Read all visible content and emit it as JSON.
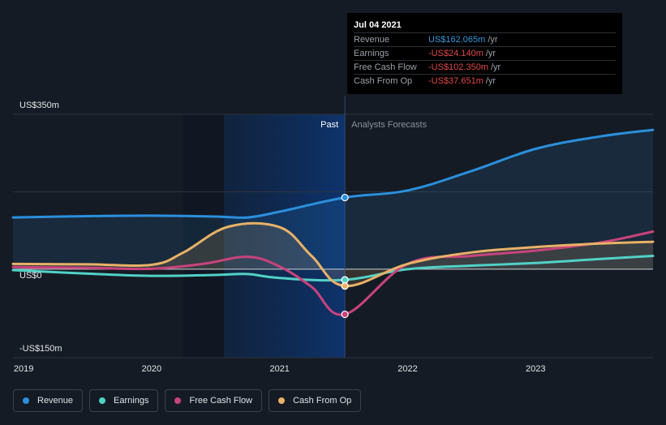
{
  "chart_data": {
    "type": "line",
    "x_range": [
      2018.917,
      2023.917
    ],
    "y_range": [
      -200,
      350
    ],
    "x_ticks": [
      {
        "value": 2019,
        "label": "2019"
      },
      {
        "value": 2020,
        "label": "2020"
      },
      {
        "value": 2021,
        "label": "2021"
      },
      {
        "value": 2022,
        "label": "2022"
      },
      {
        "value": 2023,
        "label": "2023"
      }
    ],
    "y_ticks": [
      {
        "value": 350,
        "label": "US$350m"
      },
      {
        "value": 0,
        "label": "US$0"
      },
      {
        "value": -150,
        "label": "-US$150m"
      }
    ],
    "divider_x": 2021.51,
    "past_label": "Past",
    "forecast_label": "Analysts Forecasts",
    "series": [
      {
        "name": "Revenue",
        "color": "#2b8fdc",
        "fill": true,
        "x": [
          2018.917,
          2019.5,
          2020.0,
          2020.5,
          2020.75,
          2021.0,
          2021.51,
          2022.0,
          2022.5,
          2023.0,
          2023.5,
          2023.917
        ],
        "y": [
          117,
          120,
          121,
          119,
          117,
          130,
          162,
          178,
          222,
          272,
          300,
          315
        ]
      },
      {
        "name": "Earnings",
        "color": "#52d1c6",
        "fill": false,
        "x": [
          2018.917,
          2019.5,
          2020.0,
          2020.5,
          2020.75,
          2021.0,
          2021.51,
          2022.0,
          2022.5,
          2023.0,
          2023.5,
          2023.917
        ],
        "y": [
          -2,
          -10,
          -15,
          -13,
          -11,
          -20,
          -24,
          0,
          8,
          14,
          23,
          30
        ]
      },
      {
        "name": "Free Cash Flow",
        "color": "#c8437c",
        "fill": false,
        "x": [
          2018.917,
          2019.5,
          2020.0,
          2020.4,
          2020.75,
          2021.0,
          2021.25,
          2021.51,
          2022.0,
          2022.5,
          2023.0,
          2023.5,
          2023.917
        ],
        "y": [
          5,
          3,
          1,
          12,
          28,
          6,
          -40,
          -102,
          12,
          30,
          42,
          60,
          85
        ]
      },
      {
        "name": "Cash From Op",
        "color": "#e9b167",
        "fill": true,
        "x": [
          2018.917,
          2019.5,
          2020.0,
          2020.25,
          2020.6,
          2021.0,
          2021.25,
          2021.51,
          2022.0,
          2022.5,
          2023.0,
          2023.5,
          2023.917
        ],
        "y": [
          12,
          11,
          10,
          38,
          96,
          95,
          30,
          -38,
          12,
          38,
          50,
          58,
          62
        ]
      }
    ],
    "markers": [
      {
        "series": "Revenue",
        "x": 2021.51,
        "y": 162
      },
      {
        "series": "Earnings",
        "x": 2021.51,
        "y": -24
      },
      {
        "series": "Free Cash Flow",
        "x": 2021.51,
        "y": -102
      },
      {
        "series": "Cash From Op",
        "x": 2021.51,
        "y": -38
      }
    ]
  },
  "tooltip": {
    "date": "Jul 04 2021",
    "rows": [
      {
        "label": "Revenue",
        "value": "US$162.065m",
        "unit": "/yr"
      },
      {
        "label": "Earnings",
        "value": "-US$24.140m",
        "unit": "/yr"
      },
      {
        "label": "Free Cash Flow",
        "value": "-US$102.350m",
        "unit": "/yr"
      },
      {
        "label": "Cash From Op",
        "value": "-US$37.651m",
        "unit": "/yr"
      }
    ]
  },
  "legend": [
    {
      "label": "Revenue",
      "color": "#2b8fdc"
    },
    {
      "label": "Earnings",
      "color": "#52d1c6"
    },
    {
      "label": "Free Cash Flow",
      "color": "#c8437c"
    },
    {
      "label": "Cash From Op",
      "color": "#e9b167"
    }
  ]
}
